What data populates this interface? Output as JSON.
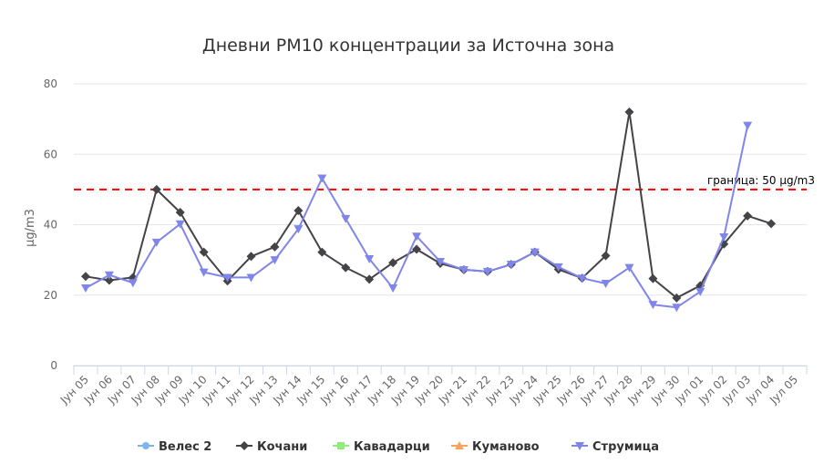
{
  "chart_data": {
    "type": "line",
    "title": "Дневни PM10 концентрации за Источна зона",
    "ylabel": "µg/m3",
    "xlabel": "",
    "ylim": [
      0,
      80
    ],
    "yticks": [
      0,
      20,
      40,
      60,
      80
    ],
    "grid": true,
    "legend_position": "bottom",
    "categories": [
      "Јун 05",
      "Јун 06",
      "Јун 07",
      "Јун 08",
      "Јун 09",
      "Јун 10",
      "Јун 11",
      "Јун 12",
      "Јун 13",
      "Јун 14",
      "Јун 15",
      "Јун 16",
      "Јун 17",
      "Јун 18",
      "Јун 19",
      "Јун 20",
      "Јун 21",
      "Јун 22",
      "Јун 23",
      "Јун 24",
      "Јун 25",
      "Јун 26",
      "Јун 27",
      "Јун 28",
      "Јун 29",
      "Јун 30",
      "Јул 01",
      "Јул 02",
      "Јул 03",
      "Јул 04",
      "Јул 05"
    ],
    "series": [
      {
        "name": "Велес 2",
        "color": "#7cb5ec",
        "marker": "circle",
        "values": [
          null,
          null,
          null,
          null,
          null,
          null,
          null,
          null,
          null,
          null,
          null,
          null,
          null,
          null,
          null,
          null,
          null,
          null,
          null,
          null,
          null,
          null,
          null,
          null,
          null,
          null,
          null,
          null,
          null,
          null,
          null
        ]
      },
      {
        "name": "Кочани",
        "color": "#434348",
        "marker": "diamond",
        "values": [
          25.3,
          24.2,
          25,
          50,
          43.5,
          32.2,
          24,
          31,
          33.7,
          44,
          32.2,
          27.8,
          24.5,
          29.2,
          33,
          29,
          27.2,
          26.7,
          28.7,
          32.2,
          27.3,
          24.8,
          31.2,
          72,
          24.7,
          19.2,
          22.7,
          34.5,
          42.5,
          40.3,
          null
        ]
      },
      {
        "name": "Кавадарци",
        "color": "#90ed7d",
        "marker": "square",
        "values": [
          null,
          null,
          null,
          null,
          null,
          null,
          null,
          null,
          null,
          null,
          null,
          null,
          null,
          null,
          null,
          null,
          null,
          null,
          null,
          null,
          null,
          null,
          null,
          null,
          null,
          null,
          null,
          null,
          null,
          null,
          null
        ]
      },
      {
        "name": "Куманово",
        "color": "#f7a35c",
        "marker": "triangle",
        "values": [
          null,
          null,
          null,
          null,
          null,
          null,
          null,
          null,
          null,
          null,
          null,
          null,
          null,
          null,
          null,
          null,
          null,
          null,
          null,
          null,
          null,
          null,
          null,
          null,
          null,
          null,
          null,
          null,
          null,
          null,
          null
        ]
      },
      {
        "name": "Струмица",
        "color": "#8085e9",
        "marker": "triangle-down",
        "values": [
          22,
          25.7,
          23.5,
          35,
          40.2,
          26.5,
          25,
          25,
          30,
          38.8,
          53.2,
          41.7,
          30.3,
          22,
          36.7,
          29.5,
          27.2,
          26.7,
          28.7,
          32.2,
          28,
          24.8,
          23.3,
          27.8,
          17.3,
          16.5,
          21,
          36.5,
          68.2,
          null,
          null
        ]
      }
    ],
    "plot_lines": [
      {
        "value": 50,
        "label": "граница: 50 µg/m3",
        "color": "#ff0000",
        "style": "dashed"
      }
    ]
  }
}
